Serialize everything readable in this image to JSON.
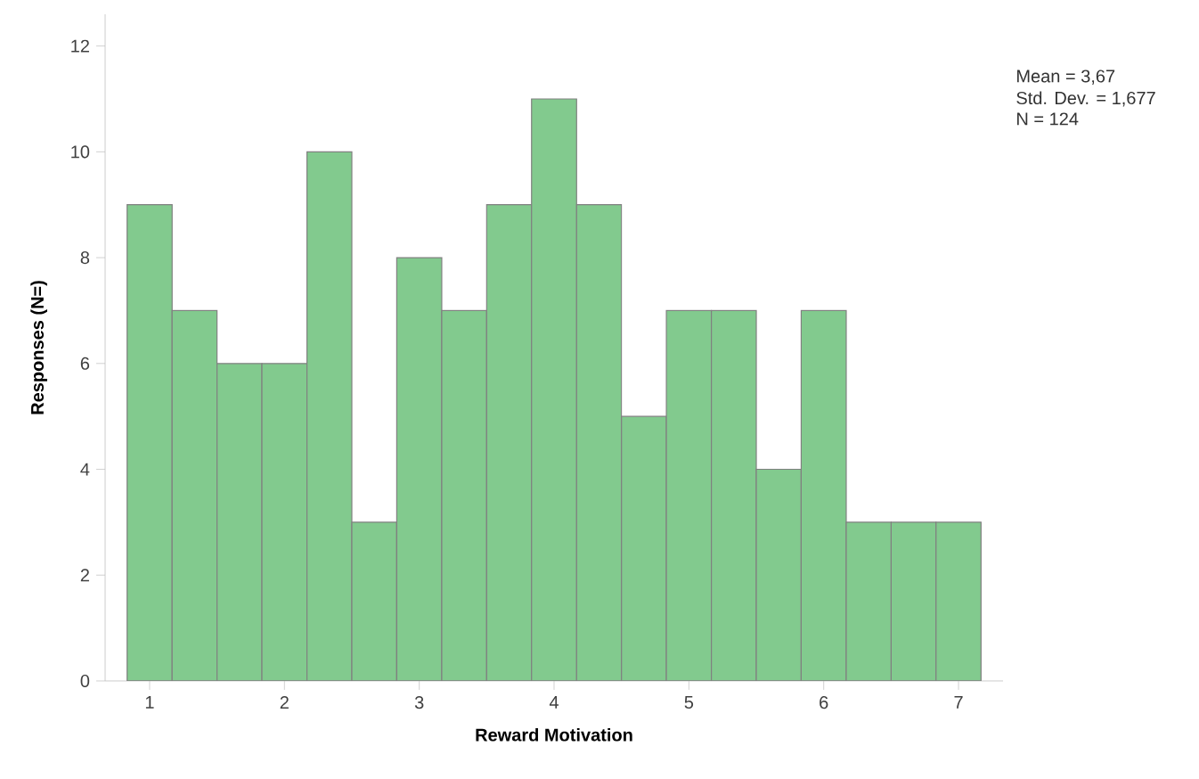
{
  "chart_data": {
    "type": "histogram",
    "xlabel": "Reward Motivation",
    "ylabel": "Responses (N=)",
    "bins": [
      0.833,
      1.167,
      1.5,
      1.833,
      2.167,
      2.5,
      2.833,
      3.167,
      3.5,
      3.833,
      4.167,
      4.5,
      4.833,
      5.167,
      5.5,
      5.833,
      6.167,
      6.5,
      6.833,
      7.167
    ],
    "values": [
      9,
      7,
      6,
      6,
      10,
      3,
      8,
      7,
      9,
      11,
      9,
      5,
      7,
      7,
      4,
      7,
      3,
      3,
      3
    ],
    "color": "#82ca8e",
    "xlim": [
      0.67,
      7.33
    ],
    "ylim": [
      0,
      12.6
    ],
    "xticks": [
      1,
      2,
      3,
      4,
      5,
      6,
      7
    ],
    "yticks": [
      0,
      2,
      4,
      6,
      8,
      10,
      12
    ],
    "grid": false,
    "annotations": [
      "Mean = 3,67",
      "Std. Dev. = 1,677",
      "N = 124"
    ]
  }
}
